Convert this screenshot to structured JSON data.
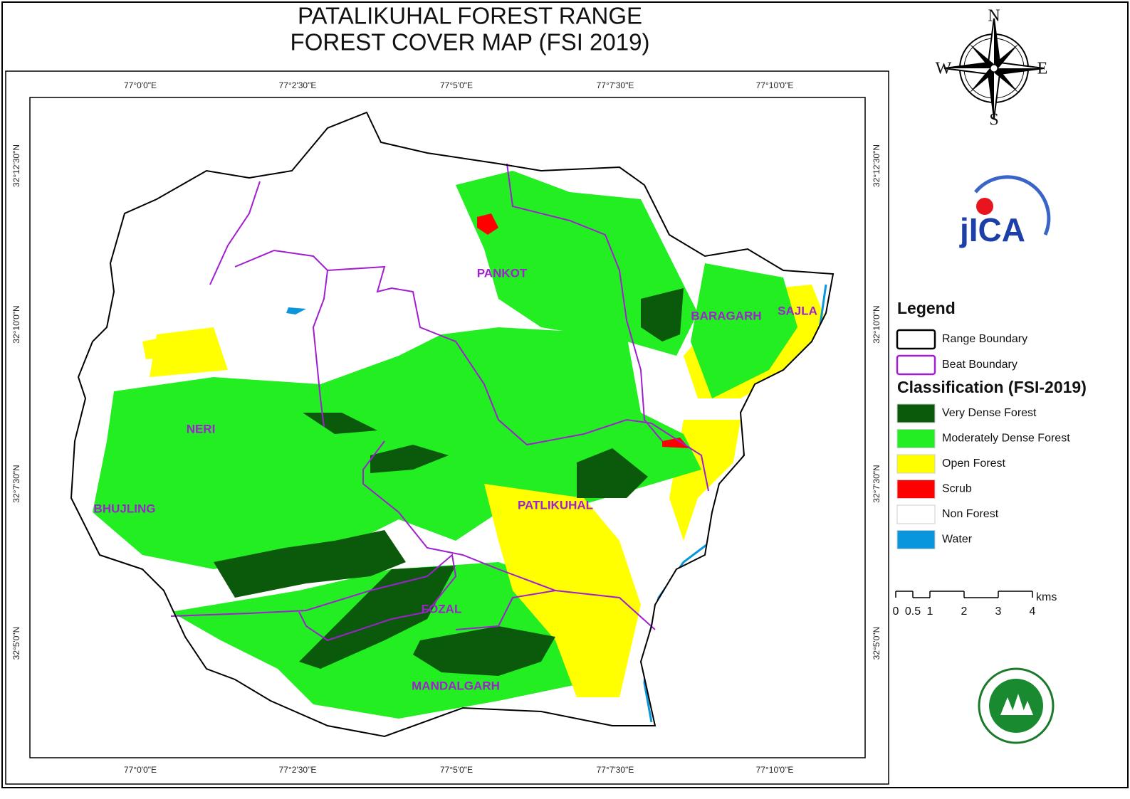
{
  "title": [
    "PATALIKUHAL FOREST RANGE",
    "FOREST COVER MAP (FSI 2019)"
  ],
  "compass": {
    "n": "N",
    "e": "E",
    "s": "S",
    "w": "W"
  },
  "logo": "jICA",
  "longitudes": [
    "77°0'0\"E",
    "77°2'30\"E",
    "77°5'0\"E",
    "77°7'30\"E",
    "77°10'0\"E"
  ],
  "latitudes": [
    "32°12'30\"N",
    "32°10'0\"N",
    "32°7'30\"N",
    "32°5'0\"N"
  ],
  "beats": [
    "PANKOT",
    "BARAGARH",
    "SAJLA",
    "NERI",
    "BHUJLING",
    "PATLIKUHAL",
    "FOZAL",
    "MANDALGARH"
  ],
  "legend": {
    "title": "Legend",
    "boundaries": [
      {
        "label": "Range Boundary",
        "color": "#000000"
      },
      {
        "label": "Beat Boundary",
        "color": "#a01fd0"
      }
    ],
    "classification_title": "Classification (FSI-2019)",
    "classes": [
      {
        "label": "Very Dense Forest",
        "color": "#0b5a0b"
      },
      {
        "label": "Moderately Dense Forest",
        "color": "#22ee22"
      },
      {
        "label": "Open Forest",
        "color": "#ffff00"
      },
      {
        "label": "Scrub",
        "color": "#ff0000"
      },
      {
        "label": "Non Forest",
        "color": "#ffffff"
      },
      {
        "label": "Water",
        "color": "#0a96dc"
      }
    ]
  },
  "scale_bar": {
    "ticks": [
      0,
      0.5,
      1,
      2,
      3,
      4
    ],
    "unit": "kms"
  }
}
